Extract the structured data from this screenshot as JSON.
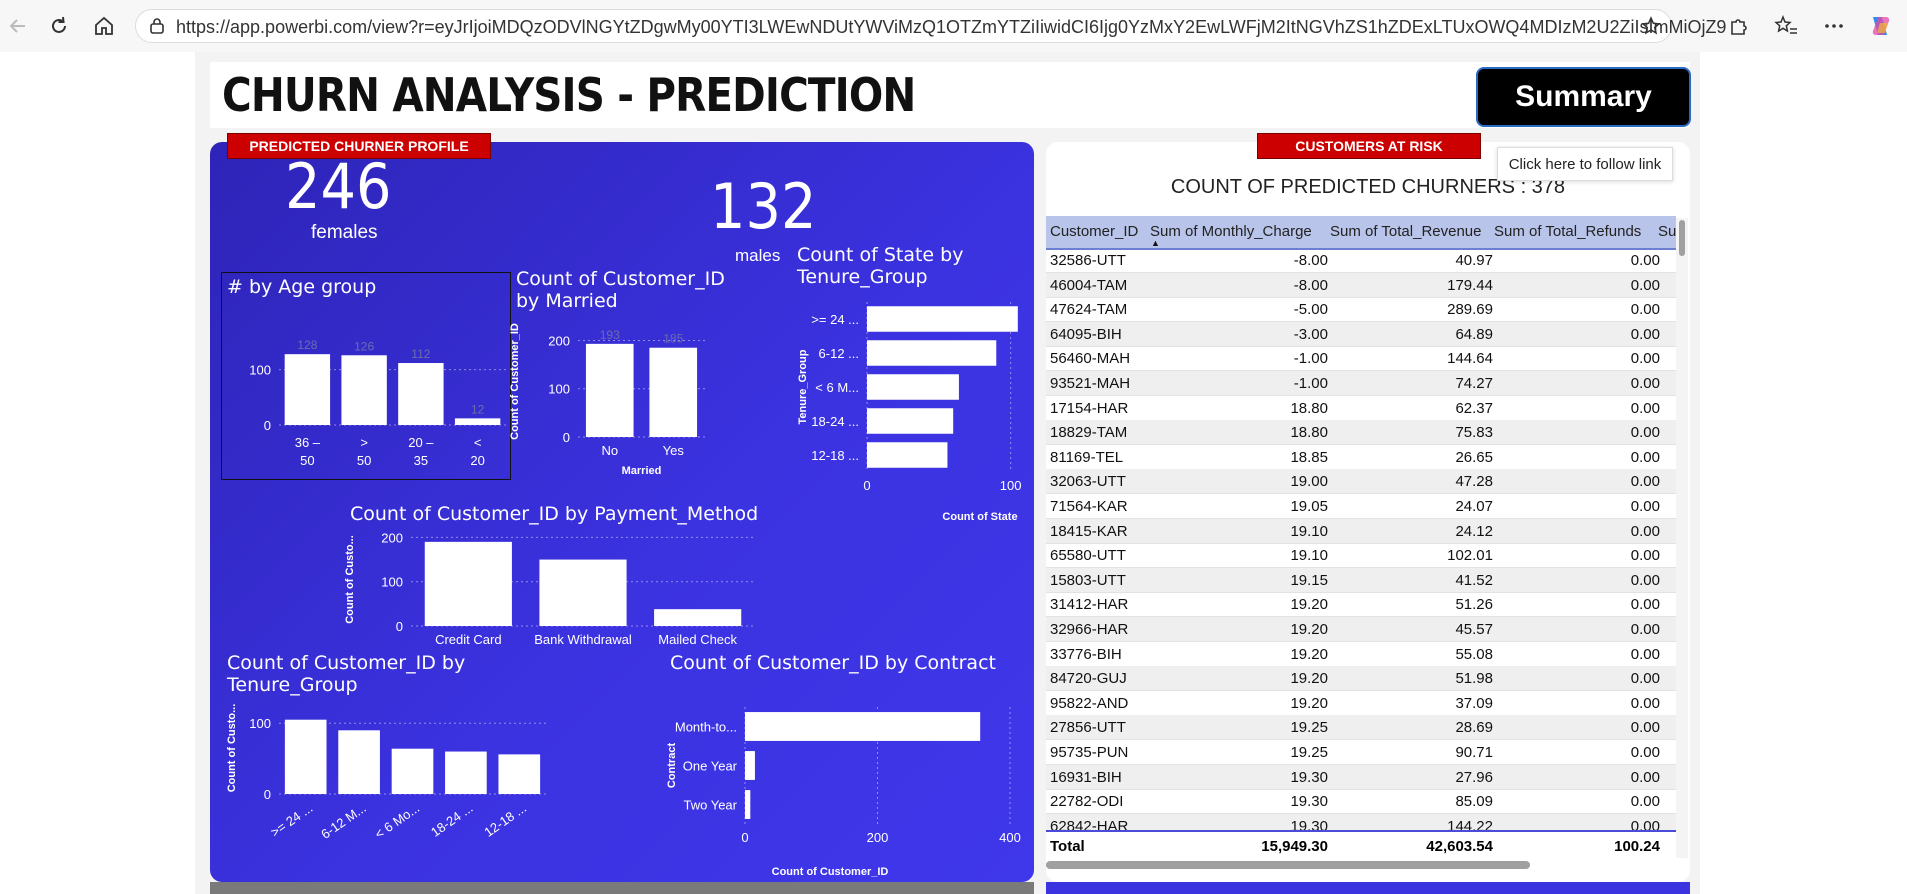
{
  "browser": {
    "url": "https://app.powerbi.com/view?r=eyJrIjoiMDQzODVlNGYtZDgwMy00YTI3LWEwNDUtYWViMzQ1OTZmYTZiIiwidCI6Ijg0YzMxY2EwLWFjM2ItNGVhZS1hZDExLTUxOWQ4MDIzM2U2ZiIsImMiOjZ9"
  },
  "header": {
    "title": "CHURN ANALYSIS - PREDICTION",
    "summary_button": "Summary",
    "tooltip": "Click here to follow link"
  },
  "profile": {
    "tag": "PREDICTED CHURNER PROFILE",
    "females_count": "246",
    "females_label": "females",
    "males_count": "132",
    "males_label": "males"
  },
  "risk": {
    "tag": "CUSTOMERS AT RISK",
    "table_title": "COUNT OF PREDICTED CHURNERS : 378",
    "columns": [
      "Customer_ID",
      "Sum of Monthly_Charge",
      "Sum of Total_Revenue",
      "Sum of Total_Refunds",
      "Su"
    ],
    "rows": [
      [
        "32586-UTT",
        "-8.00",
        "40.97",
        "0.00"
      ],
      [
        "46004-TAM",
        "-8.00",
        "179.44",
        "0.00"
      ],
      [
        "47624-TAM",
        "-5.00",
        "289.69",
        "0.00"
      ],
      [
        "64095-BIH",
        "-3.00",
        "64.89",
        "0.00"
      ],
      [
        "56460-MAH",
        "-1.00",
        "144.64",
        "0.00"
      ],
      [
        "93521-MAH",
        "-1.00",
        "74.27",
        "0.00"
      ],
      [
        "17154-HAR",
        "18.80",
        "62.37",
        "0.00"
      ],
      [
        "18829-TAM",
        "18.80",
        "75.83",
        "0.00"
      ],
      [
        "81169-TEL",
        "18.85",
        "26.65",
        "0.00"
      ],
      [
        "32063-UTT",
        "19.00",
        "47.28",
        "0.00"
      ],
      [
        "71564-KAR",
        "19.05",
        "24.07",
        "0.00"
      ],
      [
        "18415-KAR",
        "19.10",
        "24.12",
        "0.00"
      ],
      [
        "65580-UTT",
        "19.10",
        "102.01",
        "0.00"
      ],
      [
        "15803-UTT",
        "19.15",
        "41.52",
        "0.00"
      ],
      [
        "31412-HAR",
        "19.20",
        "51.26",
        "0.00"
      ],
      [
        "32966-HAR",
        "19.20",
        "45.57",
        "0.00"
      ],
      [
        "33776-BIH",
        "19.20",
        "55.08",
        "0.00"
      ],
      [
        "84720-GUJ",
        "19.20",
        "51.98",
        "0.00"
      ],
      [
        "95822-AND",
        "19.20",
        "37.09",
        "0.00"
      ],
      [
        "27856-UTT",
        "19.25",
        "28.69",
        "0.00"
      ],
      [
        "95735-PUN",
        "19.25",
        "90.71",
        "0.00"
      ],
      [
        "16931-BIH",
        "19.30",
        "27.96",
        "0.00"
      ],
      [
        "22782-ODI",
        "19.30",
        "85.09",
        "0.00"
      ],
      [
        "62842-HAR",
        "19.30",
        "144.22",
        "0.00"
      ]
    ],
    "total": [
      "Total",
      "15,949.30",
      "42,603.54",
      "100.24"
    ]
  },
  "chart_data": [
    {
      "type": "bar",
      "title": "# by Age group",
      "categories": [
        "36 – 50",
        "> 50",
        "20 – 35",
        "< 20"
      ],
      "values": [
        128,
        126,
        112,
        12
      ],
      "yticks": [
        "0",
        "100"
      ],
      "ylim": [
        0,
        150
      ]
    },
    {
      "type": "bar",
      "title": "Count of Customer_ID by Married",
      "categories": [
        "No",
        "Yes"
      ],
      "values": [
        193,
        185
      ],
      "xlabel": "Married",
      "ylabel": "Count of Customer_ID",
      "yticks": [
        "0",
        "100",
        "200"
      ],
      "ylim": [
        0,
        230
      ]
    },
    {
      "type": "bar",
      "orientation": "horizontal",
      "title": "Count of State by Tenure_Group",
      "categories": [
        ">= 24 ...",
        "6-12 ...",
        "< 6 M...",
        "18-24 ...",
        "12-18 ..."
      ],
      "values": [
        105,
        90,
        64,
        60,
        56
      ],
      "xlabel": "Count of State",
      "ylabel": "Tenure_Group",
      "xticks": [
        "0",
        "100"
      ],
      "xlim": [
        0,
        110
      ]
    },
    {
      "type": "bar",
      "title": "Count of Customer_ID by Payment_Method",
      "categories": [
        "Credit Card",
        "Bank Withdrawal",
        "Mailed Check"
      ],
      "values": [
        190,
        150,
        38
      ],
      "ylabel": "Count of Custo...",
      "yticks": [
        "0",
        "100",
        "200"
      ],
      "ylim": [
        0,
        210
      ]
    },
    {
      "type": "bar",
      "title": "Count of Customer_ID by Tenure_Group",
      "categories": [
        ">= 24 ...",
        "6-12 M...",
        "< 6 Mo...",
        "18-24 ...",
        "12-18 ..."
      ],
      "values": [
        105,
        90,
        64,
        60,
        56
      ],
      "ylabel": "Count of Custo...",
      "yticks": [
        "0",
        "100"
      ],
      "ylim": [
        0,
        130
      ]
    },
    {
      "type": "bar",
      "orientation": "horizontal",
      "title": "Count of Customer_ID by Contract",
      "categories": [
        "Month-to...",
        "One Year",
        "Two Year"
      ],
      "values": [
        355,
        15,
        8
      ],
      "xlabel": "Count of Customer_ID",
      "ylabel": "Contract",
      "xticks": [
        "0",
        "200",
        "400"
      ],
      "xlim": [
        0,
        400
      ]
    }
  ]
}
